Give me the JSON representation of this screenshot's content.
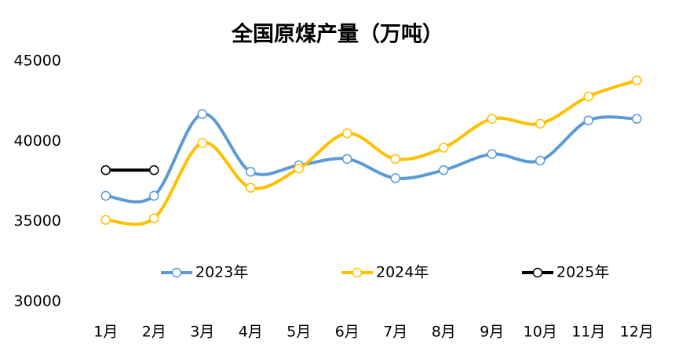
{
  "chart_data": {
    "type": "line",
    "title": "全国原煤产量（万吨）",
    "categories": [
      "1月",
      "2月",
      "3月",
      "4月",
      "5月",
      "6月",
      "7月",
      "8月",
      "9月",
      "10月",
      "11月",
      "12月"
    ],
    "series": [
      {
        "name": "2023年",
        "color": "#5b9bd5",
        "values": [
          36600,
          36600,
          41700,
          38100,
          38500,
          38900,
          37700,
          38200,
          39200,
          38800,
          41300,
          41400
        ]
      },
      {
        "name": "2024年",
        "color": "#ffc000",
        "values": [
          35100,
          35200,
          39900,
          37100,
          38300,
          40500,
          38900,
          39600,
          41400,
          41100,
          42800,
          43800
        ]
      },
      {
        "name": "2025年",
        "color": "#000000",
        "values": [
          38200,
          38200,
          null,
          null,
          null,
          null,
          null,
          null,
          null,
          null,
          null,
          null
        ]
      }
    ],
    "ylim": [
      30000,
      45000
    ],
    "yticks": [
      30000,
      35000,
      40000,
      45000
    ],
    "grid": false,
    "smooth": true
  }
}
